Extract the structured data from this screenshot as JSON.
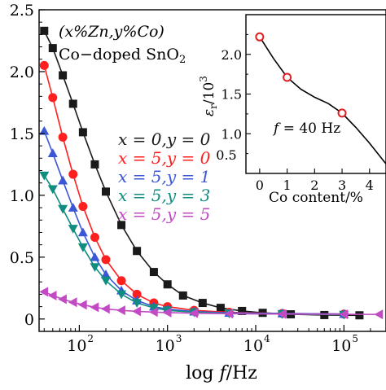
{
  "chart_data": [
    {
      "type": "scatter",
      "x_scale": "log",
      "xlim": [
        35,
        300000
      ],
      "ylim": [
        -0.1,
        2.5
      ],
      "xlabel_parts": {
        "main": "log ",
        "var": "f",
        "unit": "/Hz"
      },
      "x_ticks": [
        100,
        1000,
        10000,
        100000
      ],
      "x_tick_labels": [
        {
          "base": "10",
          "exp": "2"
        },
        {
          "base": "10",
          "exp": "3"
        },
        {
          "base": "10",
          "exp": "4"
        },
        {
          "base": "10",
          "exp": "5"
        }
      ],
      "y_ticks": [
        0,
        0.5,
        1.0,
        1.5,
        2.0,
        2.5
      ],
      "y_tick_labels": [
        "0",
        "0.5",
        "1.0",
        "1.5",
        "2.0",
        "2.5"
      ],
      "annotation_line1": "(x%Zn,y%Co)",
      "annotation_line2": "Co−doped SnO",
      "annotation_line2_sub": "2",
      "series": [
        {
          "name": "x = 0,y = 0",
          "color": "#1a1a1a",
          "marker": "square",
          "points": [
            [
              40,
              2.33
            ],
            [
              50,
              2.19
            ],
            [
              65,
              1.97
            ],
            [
              85,
              1.74
            ],
            [
              110,
              1.51
            ],
            [
              150,
              1.25
            ],
            [
              200,
              1.03
            ],
            [
              300,
              0.76
            ],
            [
              450,
              0.55
            ],
            [
              700,
              0.38
            ],
            [
              1000,
              0.28
            ],
            [
              1500,
              0.19
            ],
            [
              2500,
              0.13
            ],
            [
              4000,
              0.09
            ],
            [
              7000,
              0.065
            ],
            [
              12000,
              0.05
            ],
            [
              25000,
              0.038
            ],
            [
              60000,
              0.032
            ],
            [
              150000,
              0.03
            ]
          ]
        },
        {
          "name": "x = 5,y = 0",
          "color": "#ff1f1f",
          "marker": "circle",
          "points": [
            [
              40,
              2.05
            ],
            [
              50,
              1.79
            ],
            [
              65,
              1.47
            ],
            [
              85,
              1.17
            ],
            [
              110,
              0.91
            ],
            [
              150,
              0.66
            ],
            [
              200,
              0.48
            ],
            [
              300,
              0.31
            ],
            [
              450,
              0.2
            ],
            [
              700,
              0.13
            ],
            [
              1000,
              0.1
            ],
            [
              2000,
              0.07
            ],
            [
              5000,
              0.055
            ],
            [
              20000,
              0.045
            ],
            [
              100000,
              0.04
            ]
          ]
        },
        {
          "name": "x = 5,y = 1",
          "color": "#3b57d6",
          "marker": "triangle-up",
          "points": [
            [
              40,
              1.52
            ],
            [
              50,
              1.34
            ],
            [
              65,
              1.12
            ],
            [
              85,
              0.9
            ],
            [
              110,
              0.7
            ],
            [
              150,
              0.5
            ],
            [
              200,
              0.36
            ],
            [
              300,
              0.23
            ],
            [
              450,
              0.15
            ],
            [
              700,
              0.1
            ],
            [
              1000,
              0.08
            ],
            [
              2000,
              0.06
            ],
            [
              5000,
              0.05
            ],
            [
              20000,
              0.045
            ],
            [
              100000,
              0.04
            ]
          ]
        },
        {
          "name": "x = 5,y = 3",
          "color": "#118c80",
          "marker": "triangle-down",
          "points": [
            [
              40,
              1.16
            ],
            [
              50,
              1.05
            ],
            [
              65,
              0.89
            ],
            [
              85,
              0.73
            ],
            [
              110,
              0.58
            ],
            [
              150,
              0.42
            ],
            [
              200,
              0.31
            ],
            [
              300,
              0.2
            ],
            [
              450,
              0.13
            ],
            [
              700,
              0.09
            ],
            [
              1000,
              0.07
            ],
            [
              2000,
              0.055
            ],
            [
              5000,
              0.045
            ],
            [
              20000,
              0.04
            ],
            [
              100000,
              0.035
            ]
          ]
        },
        {
          "name": "x = 5,y = 5",
          "color": "#c24bc4",
          "marker": "triangle-left",
          "points": [
            [
              40,
              0.22
            ],
            [
              50,
              0.19
            ],
            [
              65,
              0.16
            ],
            [
              85,
              0.135
            ],
            [
              110,
              0.115
            ],
            [
              150,
              0.095
            ],
            [
              200,
              0.082
            ],
            [
              300,
              0.07
            ],
            [
              450,
              0.062
            ],
            [
              700,
              0.056
            ],
            [
              1000,
              0.052
            ],
            [
              2000,
              0.047
            ],
            [
              5000,
              0.043
            ],
            [
              20000,
              0.04
            ],
            [
              100000,
              0.038
            ],
            [
              250000,
              0.037
            ]
          ]
        }
      ]
    },
    {
      "type": "line",
      "inset": true,
      "xlabel": "Co content/%",
      "ylabel_parts": {
        "sym": "ε",
        "sub": "r",
        "rest": "/10",
        "exp": "3"
      },
      "xlim": [
        -0.5,
        4.6
      ],
      "ylim": [
        0.5,
        2.5
      ],
      "x_ticks": [
        0,
        1,
        2,
        3,
        4
      ],
      "x_tick_labels": [
        "0",
        "1",
        "2",
        "3",
        "4"
      ],
      "y_ticks": [
        1.0,
        1.5,
        2.0
      ],
      "y_tick_labels": [
        "1.0",
        "1.5",
        "2.0"
      ],
      "annotation_var": "f",
      "annotation_rest": " = 40 Hz",
      "points": [
        [
          0,
          2.22
        ],
        [
          1,
          1.71
        ],
        [
          3,
          1.26
        ]
      ],
      "curve": [
        [
          0,
          2.22
        ],
        [
          0.5,
          1.95
        ],
        [
          1,
          1.71
        ],
        [
          1.5,
          1.56
        ],
        [
          2,
          1.46
        ],
        [
          2.5,
          1.38
        ],
        [
          3,
          1.26
        ],
        [
          3.5,
          1.08
        ],
        [
          4,
          0.88
        ],
        [
          4.6,
          0.62
        ]
      ],
      "marker_color": "#e02020",
      "line_color": "#000000"
    }
  ]
}
